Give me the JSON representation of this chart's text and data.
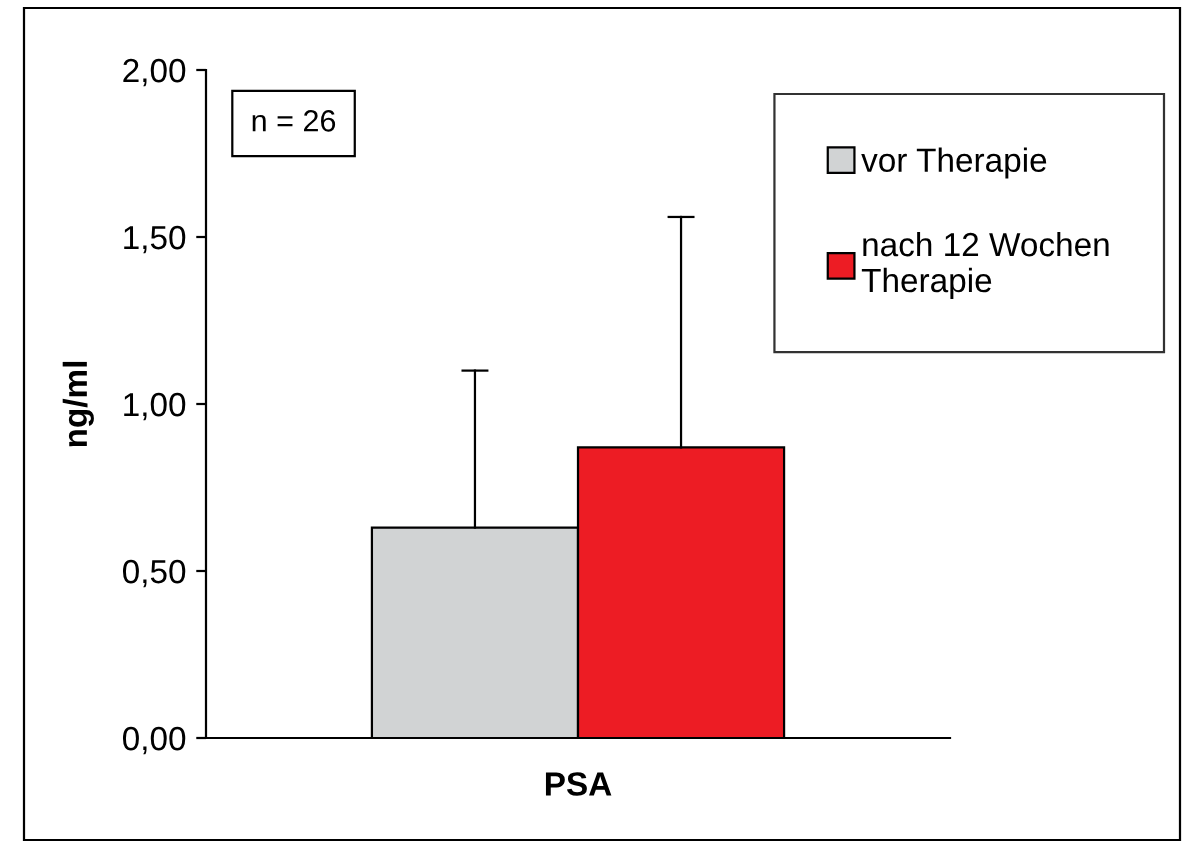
{
  "chart_data": {
    "type": "bar",
    "ylabel": "ng/ml",
    "categories": [
      "PSA"
    ],
    "series": [
      {
        "name": "vor Therapie",
        "color": "#d1d3d4",
        "values": [
          0.63
        ],
        "errors": [
          [
            0.63,
            1.1
          ]
        ]
      },
      {
        "name": "nach 12 Wochen\nTherapie",
        "color": "#ed1c24",
        "values": [
          0.87
        ],
        "errors": [
          [
            0.87,
            1.56
          ]
        ]
      }
    ],
    "ylim": [
      0,
      2
    ],
    "yticks": [
      {
        "value": 0,
        "label": "0,00"
      },
      {
        "value": 0.5,
        "label": "0,50"
      },
      {
        "value": 1,
        "label": "1,00"
      },
      {
        "value": 1.5,
        "label": "1,50"
      },
      {
        "value": 2,
        "label": "2,00"
      }
    ],
    "annotations": [
      "n = 26"
    ],
    "legend": "top right",
    "grid": false
  }
}
